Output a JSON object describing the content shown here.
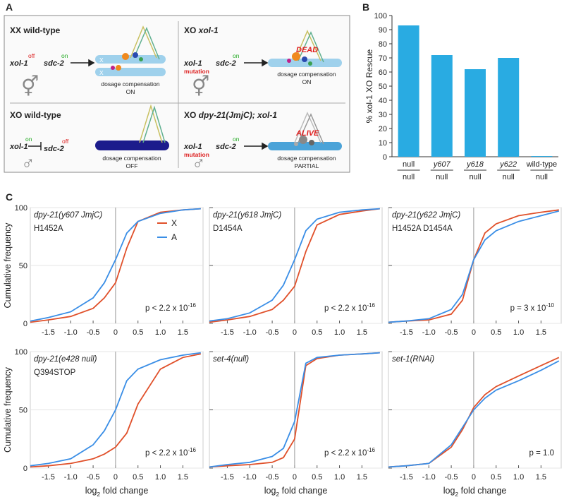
{
  "panel_labels": [
    "A",
    "B",
    "C"
  ],
  "diagram": {
    "quadrants": [
      {
        "title": [
          "XX wild-type"
        ],
        "gene1": "xol-1",
        "gene1_state": "off",
        "gene2": "sdc-2",
        "gene2_state": "on",
        "chrom_label": "X",
        "result": "dosage compensation",
        "result_state": "ON",
        "symbol": "⚥"
      },
      {
        "title": [
          "XO ",
          "xol-1"
        ],
        "gene1": "xol-1",
        "gene1_note": "mutation",
        "gene2": "sdc-2",
        "gene2_state": "on",
        "outcome": "DEAD",
        "result": "dosage compensation",
        "result_state": "ON",
        "symbol": "⚥"
      },
      {
        "title": [
          "XO wild-type"
        ],
        "gene1": "xol-1",
        "gene1_state": "on",
        "gene2": "sdc-2",
        "gene2_state": "off",
        "result": "dosage compensation",
        "result_state": "OFF",
        "symbol": "♂"
      },
      {
        "title": [
          "XO ",
          "dpy-21(JmjC)",
          "; ",
          "xol-1"
        ],
        "gene1": "xol-1",
        "gene1_note": "mutation",
        "gene2": "sdc-2",
        "gene2_state": "on",
        "outcome": "ALIVE",
        "result": "dosage compensation",
        "result_state": "PARTIAL",
        "symbol": "♂"
      }
    ]
  },
  "chart_data": [
    {
      "type": "bar",
      "ylabel": "% xol-1 XO Rescue",
      "categories": [
        "null",
        "y607",
        "y618",
        "y622",
        "wild-type"
      ],
      "category_sublabels": [
        "null",
        "null",
        "null",
        "null",
        "null"
      ],
      "category_italic": [
        false,
        true,
        true,
        true,
        false
      ],
      "values": [
        93,
        72,
        62,
        70,
        0.5
      ],
      "color": "#29abe2",
      "ylim": [
        0,
        100
      ],
      "yticks": [
        0,
        10,
        20,
        30,
        40,
        50,
        60,
        70,
        80,
        90,
        100
      ]
    },
    {
      "type": "line",
      "title": "dpy-21(y607 JmjC)",
      "subtitle": "H1452A",
      "annotation": [
        "p < 2.2 x 10",
        "-16"
      ],
      "ylabel": "Cumulative frequency",
      "legend": "upper right",
      "x": [
        -1.9,
        -1.5,
        -1,
        -0.5,
        -0.25,
        0,
        0.25,
        0.5,
        1,
        1.5,
        1.9
      ],
      "series": [
        {
          "name": "X",
          "color": "#e0502a",
          "values": [
            1,
            3,
            6,
            13,
            22,
            35,
            65,
            88,
            96,
            98,
            99
          ]
        },
        {
          "name": "A",
          "color": "#3a8ee6",
          "values": [
            2,
            5,
            10,
            22,
            35,
            55,
            78,
            88,
            95,
            98,
            99
          ]
        }
      ],
      "xlim": [
        -1.9,
        1.95
      ],
      "ylim": [
        0,
        100
      ],
      "xticks": [
        -1.5,
        {
          "value": -1,
          "label": "-1.0"
        },
        -0.5,
        0,
        0.5,
        {
          "value": 1,
          "label": "1.0"
        },
        1.5
      ],
      "yticks": [
        0,
        50,
        100
      ],
      "vline": 0,
      "grid": true
    },
    {
      "type": "line",
      "title": "dpy-21(y618 JmjC)",
      "subtitle": "D1454A",
      "annotation": [
        "p < 2.2 x 10",
        "-16"
      ],
      "x": [
        -1.9,
        -1.5,
        -1,
        -0.5,
        -0.25,
        0,
        0.25,
        0.5,
        1,
        1.5,
        1.9
      ],
      "series": [
        {
          "name": "X",
          "color": "#e0502a",
          "values": [
            1,
            3,
            6,
            12,
            20,
            32,
            62,
            85,
            94,
            97,
            99
          ]
        },
        {
          "name": "A",
          "color": "#3a8ee6",
          "values": [
            2,
            4,
            9,
            20,
            33,
            55,
            80,
            90,
            96,
            98,
            99
          ]
        }
      ],
      "xlim": [
        -1.9,
        1.95
      ],
      "ylim": [
        0,
        100
      ],
      "xticks": [
        -1.5,
        {
          "value": -1,
          "label": "-1.0"
        },
        -0.5,
        0,
        0.5,
        {
          "value": 1,
          "label": "1.0"
        },
        1.5
      ],
      "yticks": [
        0,
        50,
        100
      ],
      "vline": 0,
      "grid": true
    },
    {
      "type": "line",
      "title": "dpy-21(y622 JmjC)",
      "subtitle": "H1452A D1454A",
      "annotation": [
        "p = 3 x 10",
        "-10"
      ],
      "x": [
        -1.9,
        -1.5,
        -1,
        -0.5,
        -0.25,
        0,
        0.25,
        0.5,
        1,
        1.5,
        1.9
      ],
      "series": [
        {
          "name": "X",
          "color": "#e0502a",
          "values": [
            1,
            2,
            3,
            8,
            20,
            55,
            78,
            86,
            93,
            96,
            98
          ]
        },
        {
          "name": "A",
          "color": "#3a8ee6",
          "values": [
            1,
            2,
            4,
            12,
            25,
            55,
            72,
            80,
            88,
            93,
            97
          ]
        }
      ],
      "xlim": [
        -1.9,
        1.95
      ],
      "ylim": [
        0,
        100
      ],
      "xticks": [
        -1.5,
        {
          "value": -1,
          "label": "-1.0"
        },
        -0.5,
        0,
        0.5,
        {
          "value": 1,
          "label": "1.0"
        },
        1.5
      ],
      "yticks": [
        0,
        50,
        100
      ],
      "vline": 0,
      "grid": true
    },
    {
      "type": "line",
      "title": "dpy-21(e428 null)",
      "subtitle": "Q394STOP",
      "annotation": [
        "p < 2.2 x 10",
        "-16"
      ],
      "ylabel": "Cumulative frequency",
      "xlabel": [
        "log",
        "2",
        " fold change"
      ],
      "x": [
        -1.9,
        -1.5,
        -1,
        -0.5,
        -0.25,
        0,
        0.25,
        0.5,
        1,
        1.5,
        1.9
      ],
      "series": [
        {
          "name": "X",
          "color": "#e0502a",
          "values": [
            1,
            2,
            4,
            8,
            12,
            18,
            30,
            55,
            85,
            95,
            98
          ]
        },
        {
          "name": "A",
          "color": "#3a8ee6",
          "values": [
            2,
            4,
            8,
            20,
            32,
            50,
            75,
            85,
            93,
            97,
            99
          ]
        }
      ],
      "xlim": [
        -1.9,
        1.95
      ],
      "ylim": [
        0,
        100
      ],
      "xticks": [
        -1.5,
        {
          "value": -1,
          "label": "-1.0"
        },
        -0.5,
        0,
        0.5,
        {
          "value": 1,
          "label": "1.0"
        },
        1.5
      ],
      "yticks": [
        0,
        50,
        100
      ],
      "vline": 0,
      "grid": true
    },
    {
      "type": "line",
      "title": "set-4(null)",
      "annotation": [
        "p < 2.2 x 10",
        "-16"
      ],
      "xlabel": [
        "log",
        "2",
        " fold change"
      ],
      "x": [
        -1.9,
        -1.5,
        -1,
        -0.5,
        -0.25,
        0,
        0.25,
        0.5,
        1,
        1.5,
        1.9
      ],
      "series": [
        {
          "name": "X",
          "color": "#e0502a",
          "values": [
            1,
            2,
            3,
            5,
            9,
            25,
            88,
            94,
            97,
            98,
            99
          ]
        },
        {
          "name": "A",
          "color": "#3a8ee6",
          "values": [
            1,
            3,
            5,
            10,
            17,
            40,
            90,
            95,
            97,
            98,
            99
          ]
        }
      ],
      "xlim": [
        -1.9,
        1.95
      ],
      "ylim": [
        0,
        100
      ],
      "xticks": [
        -1.5,
        {
          "value": -1,
          "label": "-1.0"
        },
        -0.5,
        0,
        0.5,
        {
          "value": 1,
          "label": "1.0"
        },
        1.5
      ],
      "yticks": [
        0,
        50,
        100
      ],
      "vline": 0,
      "grid": true
    },
    {
      "type": "line",
      "title": "set-1(RNAi)",
      "annotation": [
        "p = 1.0"
      ],
      "xlabel": [
        "log",
        "2",
        " fold change"
      ],
      "x": [
        -1.9,
        -1.5,
        -1,
        -0.5,
        -0.25,
        0,
        0.25,
        0.5,
        1,
        1.5,
        1.9
      ],
      "series": [
        {
          "name": "X",
          "color": "#e0502a",
          "values": [
            1,
            2,
            4,
            18,
            33,
            52,
            63,
            70,
            79,
            88,
            95
          ]
        },
        {
          "name": "A",
          "color": "#3a8ee6",
          "values": [
            1,
            2,
            4,
            20,
            35,
            50,
            60,
            67,
            75,
            84,
            92
          ]
        }
      ],
      "xlim": [
        -1.9,
        1.95
      ],
      "ylim": [
        0,
        100
      ],
      "xticks": [
        -1.5,
        {
          "value": -1,
          "label": "-1.0"
        },
        -0.5,
        0,
        0.5,
        {
          "value": 1,
          "label": "1.0"
        },
        1.5
      ],
      "yticks": [
        0,
        50,
        100
      ],
      "vline": 0,
      "grid": true
    }
  ]
}
